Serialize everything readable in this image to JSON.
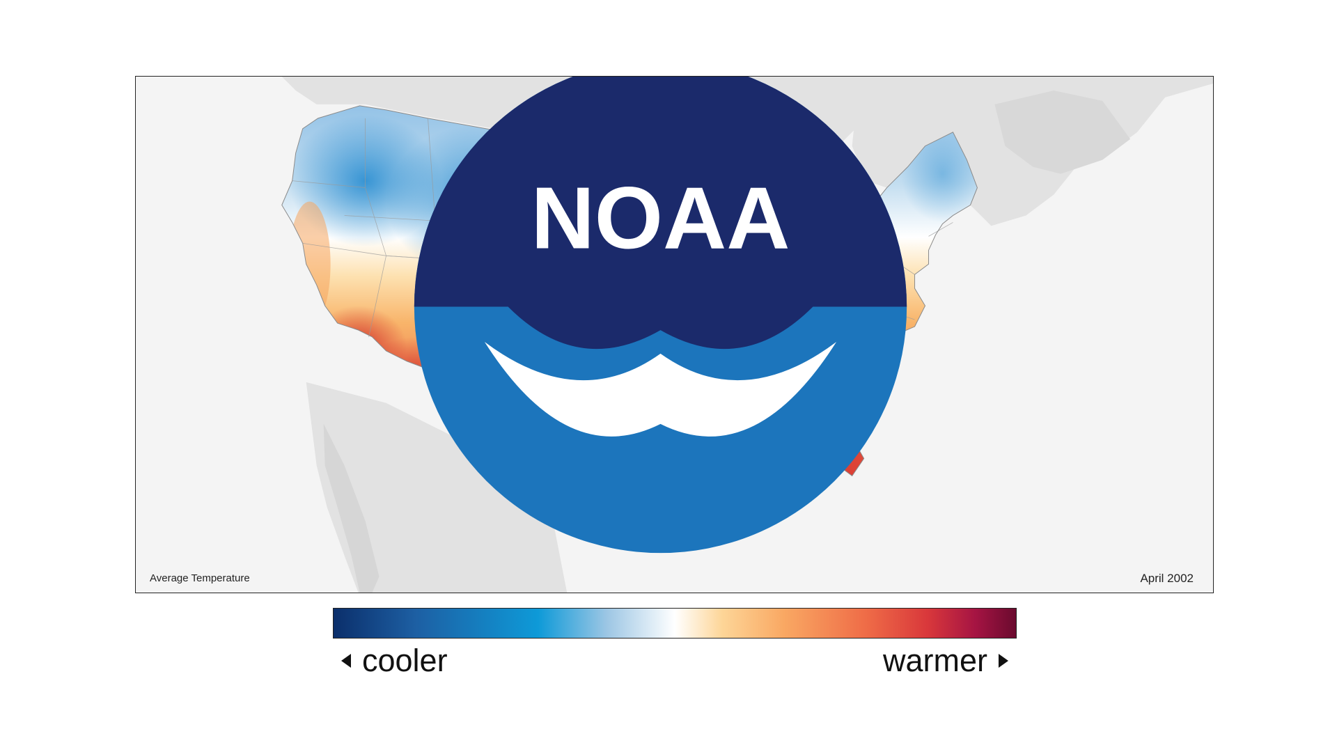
{
  "map": {
    "variable_label": "Average Temperature",
    "date_label": "April 2002",
    "logo_text": "NOAA",
    "colors": {
      "ocean": "#f4f4f4",
      "neighbor_land": "#e2e2e2",
      "state_border": "#9a9a9a",
      "cold": "#2f8fd0",
      "cool": "#a9cfe9",
      "neutral": "#ffffff",
      "mild": "#fbd08f",
      "warm": "#f08a55",
      "hot": "#dd3f35",
      "logo_blue": "#1c75bc",
      "logo_navy": "#1b2a6b"
    }
  },
  "legend": {
    "left_label": "cooler",
    "right_label": "warmer",
    "scale": [
      "#0b2f6b",
      "#1d5fa3",
      "#0e9ad8",
      "#9cc6e4",
      "#ffffff",
      "#fdd597",
      "#f9a863",
      "#ef6c47",
      "#d9383b",
      "#a61443",
      "#6a0a2e"
    ]
  }
}
